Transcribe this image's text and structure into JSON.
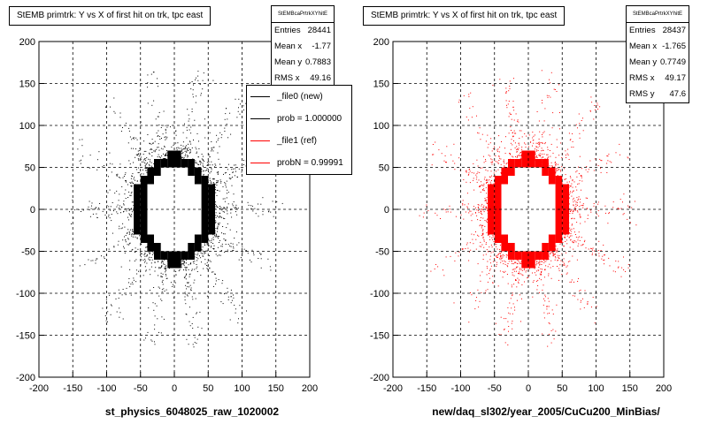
{
  "panels": [
    {
      "title": "StEMB primtrk: Y vs X of first hit on trk, tpc east",
      "stats_name": "StEMBcaPrtrkXYhitE",
      "stats": [
        {
          "label": "Entries",
          "value": "28441"
        },
        {
          "label": "Mean x",
          "value": "-1.77"
        },
        {
          "label": "Mean y",
          "value": "0.7883"
        },
        {
          "label": "RMS x",
          "value": "49.16"
        }
      ],
      "xlabel": "st_physics_6048025_raw_1020002",
      "color": "#000000"
    },
    {
      "title": "StEMB primtrk: Y vs X of first hit on trk, tpc east",
      "stats_name": "StEMBcaPrtrkXYhitE",
      "stats": [
        {
          "label": "Entries",
          "value": "28437"
        },
        {
          "label": "Mean x",
          "value": "-1.765"
        },
        {
          "label": "Mean y",
          "value": "0.7749"
        },
        {
          "label": "RMS x",
          "value": "49.17"
        },
        {
          "label": "RMS y",
          "value": "47.6"
        }
      ],
      "xlabel": "new/daq_sl302/year_2005/CuCu200_MinBias/",
      "color": "#ff0000"
    }
  ],
  "legend": [
    {
      "label": "_file0 (new)",
      "color": "#000000"
    },
    {
      "label": "prob = 1.000000",
      "color": "#000000"
    },
    {
      "label": "_file1 (ref)",
      "color": "#ff0000"
    },
    {
      "label": "probN = 0.99991",
      "color": "#ff0000"
    }
  ],
  "chart_data": [
    {
      "type": "scatter",
      "title": "StEMB primtrk: Y vs X of first hit on trk, tpc east",
      "xlabel": "st_physics_6048025_raw_1020002",
      "ylabel": "",
      "xlim": [
        -200,
        200
      ],
      "ylim": [
        -200,
        200
      ],
      "xticks": [
        -200,
        -150,
        -100,
        -50,
        0,
        50,
        100,
        150,
        200
      ],
      "yticks": [
        -200,
        -150,
        -100,
        -50,
        0,
        50,
        100,
        150,
        200
      ],
      "grid": true,
      "series": [
        {
          "name": "_file0 (new)",
          "color": "#000000",
          "ring": {
            "rx": 55,
            "ry": 62,
            "cx": 0,
            "cy": 0
          },
          "entries": 28441
        }
      ]
    },
    {
      "type": "scatter",
      "title": "StEMB primtrk: Y vs X of first hit on trk, tpc east",
      "xlabel": "new/daq_sl302/year_2005/CuCu200_MinBias/",
      "ylabel": "",
      "xlim": [
        -200,
        200
      ],
      "ylim": [
        -200,
        200
      ],
      "xticks": [
        -200,
        -150,
        -100,
        -50,
        0,
        50,
        100,
        150,
        200
      ],
      "yticks": [
        -200,
        -150,
        -100,
        -50,
        0,
        50,
        100,
        150,
        200
      ],
      "grid": true,
      "series": [
        {
          "name": "_file1 (ref)",
          "color": "#ff0000",
          "ring": {
            "rx": 55,
            "ry": 62,
            "cx": 0,
            "cy": 0
          },
          "entries": 28437
        }
      ]
    }
  ]
}
